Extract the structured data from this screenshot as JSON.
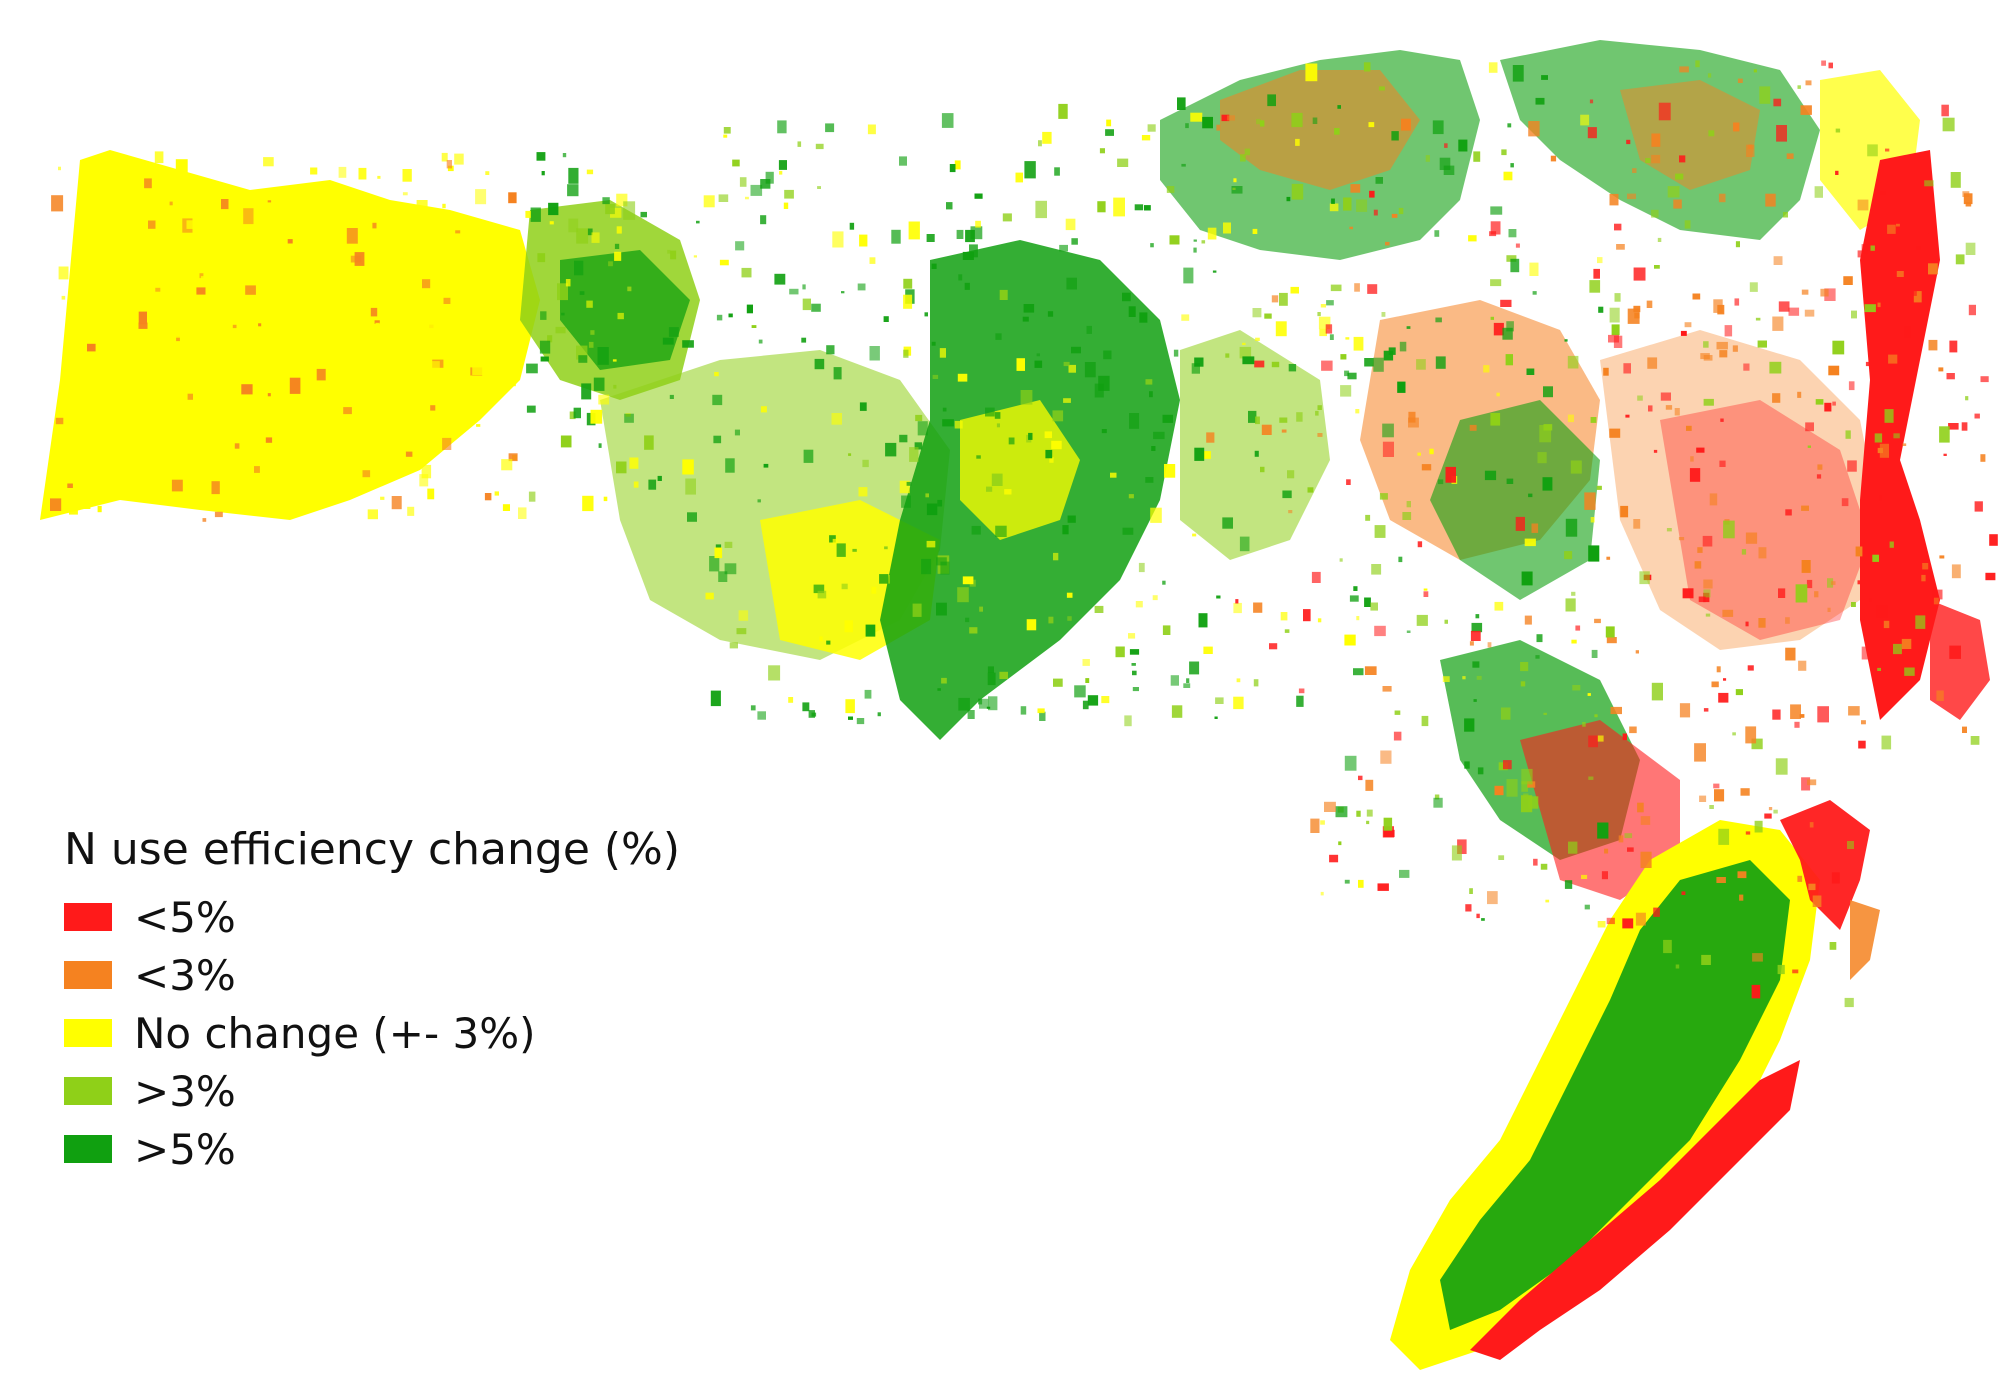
{
  "map": {
    "region_shape": "state-outline-with-classified-raster",
    "legend": {
      "title": "N use efficiency change (%)",
      "items": [
        {
          "label": "<5%",
          "color": "#ff1a1a"
        },
        {
          "label": "<3%",
          "color": "#f58220"
        },
        {
          "label": "No change (+- 3%)",
          "color": "#ffff00"
        },
        {
          "label": ">3%",
          "color": "#8fd018"
        },
        {
          "label": ">5%",
          "color": "#10a010"
        }
      ]
    }
  }
}
